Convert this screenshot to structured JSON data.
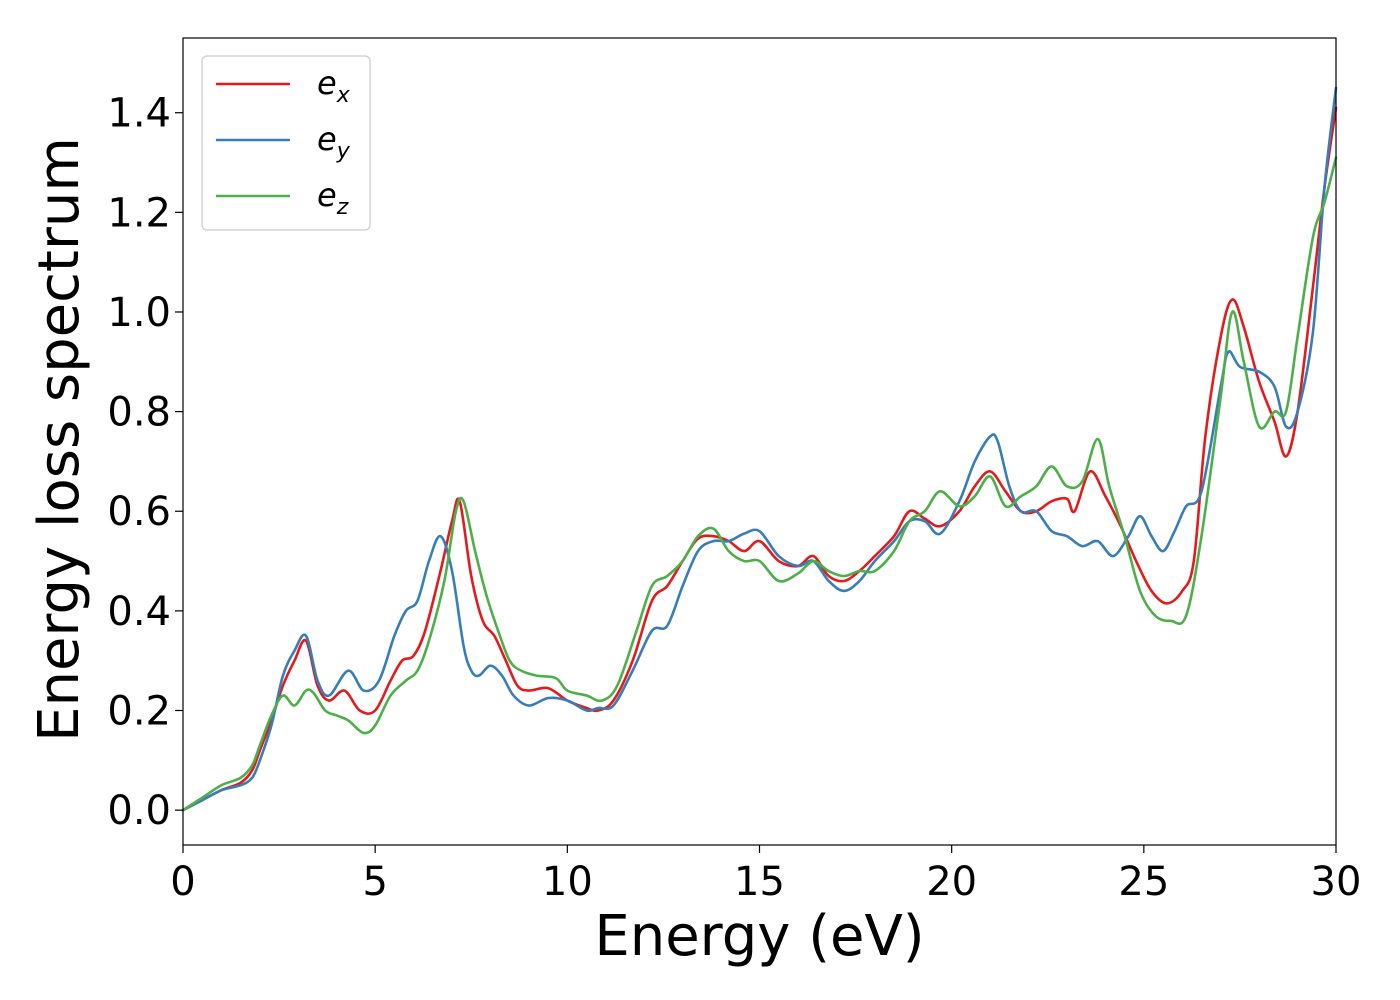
{
  "chart_data": {
    "type": "line",
    "title": "",
    "xlabel": "Energy (eV)",
    "ylabel": "Energy loss spectrum",
    "xlim": [
      0,
      30
    ],
    "ylim": [
      -0.07,
      1.55
    ],
    "xticks": [
      0,
      5,
      10,
      15,
      20,
      25,
      30
    ],
    "xtick_labels": [
      "0",
      "5",
      "10",
      "15",
      "20",
      "25",
      "30"
    ],
    "yticks": [
      0.0,
      0.2,
      0.4,
      0.6,
      0.8,
      1.0,
      1.2,
      1.4
    ],
    "ytick_labels": [
      "0.0",
      "0.2",
      "0.4",
      "0.6",
      "0.8",
      "1.0",
      "1.2",
      "1.4"
    ],
    "grid": false,
    "legend_position": "top-left",
    "series": [
      {
        "name": "e_x",
        "legend_base": "e",
        "legend_sub": "x",
        "color": "#e41a1c",
        "x": [
          0,
          0.5,
          1.0,
          1.5,
          1.8,
          2.0,
          2.3,
          2.6,
          2.9,
          3.2,
          3.5,
          3.8,
          4.2,
          4.6,
          5.0,
          5.4,
          5.7,
          6.0,
          6.3,
          6.7,
          7.0,
          7.2,
          7.5,
          7.8,
          8.1,
          8.4,
          8.7,
          9.0,
          9.5,
          10.0,
          10.5,
          10.8,
          11.2,
          11.7,
          12.2,
          12.6,
          13.0,
          13.4,
          13.8,
          14.2,
          14.6,
          15.0,
          15.5,
          16.0,
          16.4,
          16.8,
          17.2,
          17.6,
          18.0,
          18.5,
          18.9,
          19.3,
          19.7,
          20.2,
          20.6,
          21.0,
          21.4,
          21.8,
          22.2,
          22.6,
          23.0,
          23.2,
          23.6,
          24.0,
          24.4,
          24.8,
          25.2,
          25.6,
          26.0,
          26.3,
          26.6,
          27.0,
          27.3,
          27.6,
          28.0,
          28.4,
          28.7,
          29.0,
          29.4,
          29.7,
          30.0
        ],
        "y": [
          0.0,
          0.02,
          0.04,
          0.055,
          0.08,
          0.12,
          0.18,
          0.25,
          0.3,
          0.34,
          0.25,
          0.22,
          0.24,
          0.2,
          0.2,
          0.26,
          0.3,
          0.31,
          0.36,
          0.48,
          0.58,
          0.62,
          0.47,
          0.38,
          0.35,
          0.3,
          0.25,
          0.24,
          0.245,
          0.22,
          0.205,
          0.2,
          0.22,
          0.3,
          0.42,
          0.45,
          0.5,
          0.545,
          0.55,
          0.54,
          0.52,
          0.54,
          0.5,
          0.49,
          0.51,
          0.47,
          0.46,
          0.48,
          0.51,
          0.55,
          0.6,
          0.585,
          0.57,
          0.6,
          0.65,
          0.68,
          0.64,
          0.6,
          0.6,
          0.62,
          0.625,
          0.6,
          0.68,
          0.63,
          0.57,
          0.5,
          0.44,
          0.415,
          0.44,
          0.5,
          0.75,
          0.95,
          1.025,
          0.97,
          0.86,
          0.78,
          0.71,
          0.8,
          1.05,
          1.25,
          1.41
        ]
      },
      {
        "name": "e_y",
        "legend_base": "e",
        "legend_sub": "y",
        "color": "#377eb8",
        "x": [
          0,
          0.5,
          1.0,
          1.5,
          1.8,
          2.0,
          2.3,
          2.6,
          2.9,
          3.2,
          3.5,
          3.8,
          4.3,
          4.7,
          5.1,
          5.5,
          5.8,
          6.1,
          6.4,
          6.7,
          7.0,
          7.3,
          7.5,
          7.7,
          8.0,
          8.3,
          8.6,
          9.0,
          9.5,
          10.0,
          10.5,
          10.8,
          11.2,
          11.7,
          12.2,
          12.6,
          13.0,
          13.4,
          13.8,
          14.2,
          14.6,
          15.0,
          15.5,
          16.0,
          16.4,
          16.8,
          17.2,
          17.6,
          18.0,
          18.5,
          18.9,
          19.3,
          19.7,
          20.2,
          20.6,
          21.0,
          21.2,
          21.5,
          21.8,
          22.2,
          22.6,
          23.0,
          23.4,
          23.8,
          24.2,
          24.6,
          24.9,
          25.2,
          25.5,
          25.8,
          26.1,
          26.5,
          27.0,
          27.2,
          27.5,
          28.0,
          28.4,
          28.7,
          29.0,
          29.4,
          29.7,
          30.0
        ],
        "y": [
          0.0,
          0.02,
          0.04,
          0.05,
          0.065,
          0.1,
          0.17,
          0.27,
          0.32,
          0.35,
          0.26,
          0.23,
          0.28,
          0.24,
          0.26,
          0.35,
          0.4,
          0.42,
          0.5,
          0.55,
          0.48,
          0.33,
          0.28,
          0.27,
          0.29,
          0.27,
          0.23,
          0.21,
          0.225,
          0.22,
          0.2,
          0.205,
          0.21,
          0.28,
          0.36,
          0.37,
          0.45,
          0.52,
          0.54,
          0.54,
          0.555,
          0.56,
          0.51,
          0.49,
          0.5,
          0.46,
          0.44,
          0.46,
          0.5,
          0.54,
          0.58,
          0.58,
          0.555,
          0.62,
          0.7,
          0.75,
          0.74,
          0.65,
          0.6,
          0.6,
          0.56,
          0.55,
          0.53,
          0.54,
          0.51,
          0.55,
          0.59,
          0.55,
          0.52,
          0.56,
          0.61,
          0.64,
          0.85,
          0.92,
          0.89,
          0.88,
          0.85,
          0.77,
          0.8,
          0.96,
          1.25,
          1.45
        ]
      },
      {
        "name": "e_z",
        "legend_base": "e",
        "legend_sub": "z",
        "color": "#4daf4a",
        "x": [
          0,
          0.5,
          1.0,
          1.5,
          1.8,
          2.0,
          2.3,
          2.6,
          2.9,
          3.2,
          3.4,
          3.7,
          4.0,
          4.3,
          4.7,
          5.0,
          5.4,
          5.8,
          6.1,
          6.4,
          6.8,
          7.1,
          7.3,
          7.6,
          7.9,
          8.2,
          8.5,
          8.8,
          9.2,
          9.7,
          10.0,
          10.5,
          10.9,
          11.3,
          11.8,
          12.2,
          12.6,
          13.0,
          13.4,
          13.8,
          14.2,
          14.6,
          15.0,
          15.5,
          16.0,
          16.4,
          16.8,
          17.2,
          17.6,
          18.0,
          18.5,
          18.9,
          19.3,
          19.7,
          20.2,
          20.6,
          21.0,
          21.4,
          21.8,
          22.2,
          22.6,
          23.0,
          23.4,
          23.8,
          24.1,
          24.5,
          24.9,
          25.3,
          25.7,
          26.1,
          26.5,
          27.0,
          27.3,
          27.6,
          28.0,
          28.4,
          28.7,
          29.0,
          29.4,
          29.7,
          30.0
        ],
        "y": [
          0.0,
          0.025,
          0.05,
          0.065,
          0.09,
          0.13,
          0.19,
          0.23,
          0.21,
          0.24,
          0.235,
          0.2,
          0.19,
          0.18,
          0.155,
          0.17,
          0.23,
          0.26,
          0.28,
          0.34,
          0.46,
          0.6,
          0.62,
          0.52,
          0.43,
          0.36,
          0.3,
          0.28,
          0.27,
          0.265,
          0.24,
          0.23,
          0.22,
          0.25,
          0.36,
          0.45,
          0.47,
          0.5,
          0.55,
          0.565,
          0.52,
          0.5,
          0.5,
          0.46,
          0.475,
          0.5,
          0.48,
          0.47,
          0.48,
          0.48,
          0.52,
          0.58,
          0.6,
          0.64,
          0.61,
          0.63,
          0.67,
          0.61,
          0.63,
          0.65,
          0.69,
          0.65,
          0.66,
          0.745,
          0.65,
          0.55,
          0.44,
          0.39,
          0.38,
          0.39,
          0.55,
          0.83,
          1.0,
          0.9,
          0.77,
          0.8,
          0.8,
          0.95,
          1.15,
          1.22,
          1.31
        ]
      }
    ]
  }
}
